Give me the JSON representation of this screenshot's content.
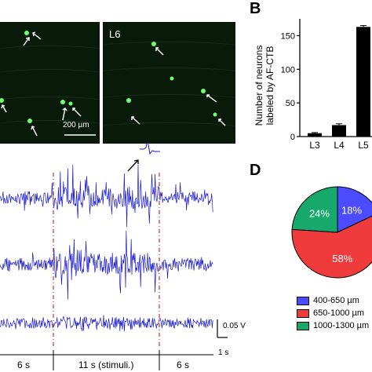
{
  "panels": {
    "B": "B",
    "D": "D"
  },
  "micrographs": {
    "right_label": "L6",
    "scale_bar_label": "200 µm"
  },
  "chart_data": [
    {
      "type": "bar",
      "categories": [
        "L3",
        "L4",
        "L5"
      ],
      "values": [
        5,
        17,
        163
      ],
      "error": [
        1,
        2,
        2
      ],
      "ylabel_line1": "Number of  neurons",
      "ylabel_line2": "labeled by AF-CTB",
      "yticks": [
        0,
        50,
        100,
        150
      ],
      "ylim": [
        0,
        175
      ],
      "color": "#000000"
    },
    {
      "type": "pie",
      "slices": [
        {
          "label": "18%",
          "value": 18,
          "color": "#4b4bff"
        },
        {
          "label": "58%",
          "value": 58,
          "color": "#ef3b3b"
        },
        {
          "label": "24%",
          "value": 24,
          "color": "#17a86b"
        }
      ],
      "legend": [
        {
          "text": "400-650 µm",
          "color": "#4b4bff"
        },
        {
          "text": "650-1000 µm",
          "color": "#ef3b3b"
        },
        {
          "text": "1000-1300 µm",
          "color": "#17a86b"
        }
      ]
    }
  ],
  "recording": {
    "scale_v": "0.05 V",
    "scale_t": "1 s",
    "segments": [
      "6 s",
      "11 s (stimuli.)",
      "6 s"
    ],
    "trace_color": "#1a1acc",
    "marker_color": "#cc3333"
  }
}
